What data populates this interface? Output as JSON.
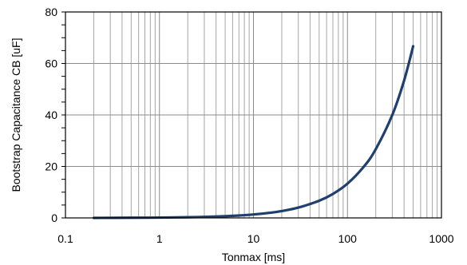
{
  "chart_data": {
    "type": "line",
    "title": "",
    "xlabel": "Tonmax [ms]",
    "ylabel": "Bootstrap Capacitance CB [uF]",
    "x_scale": "log",
    "xlim": [
      0.1,
      1000
    ],
    "ylim": [
      0,
      80
    ],
    "x_ticks": [
      {
        "value": 0.1,
        "label": "0.1"
      },
      {
        "value": 1,
        "label": "1"
      },
      {
        "value": 10,
        "label": "10"
      },
      {
        "value": 100,
        "label": "100"
      },
      {
        "value": 1000,
        "label": "1000"
      }
    ],
    "y_ticks": [
      {
        "value": 0,
        "label": "0"
      },
      {
        "value": 20,
        "label": "20"
      },
      {
        "value": 40,
        "label": "40"
      },
      {
        "value": 60,
        "label": "60"
      },
      {
        "value": 80,
        "label": "80"
      }
    ],
    "grid": true,
    "legend": "none",
    "series": [
      {
        "color": "#1f3f6e",
        "points": [
          [
            0.2,
            0.0
          ],
          [
            0.5,
            0.07
          ],
          [
            1,
            0.13
          ],
          [
            2,
            0.27
          ],
          [
            3,
            0.4
          ],
          [
            5,
            0.67
          ],
          [
            7,
            0.93
          ],
          [
            10,
            1.33
          ],
          [
            15,
            2.0
          ],
          [
            20,
            2.67
          ],
          [
            30,
            4.0
          ],
          [
            50,
            6.67
          ],
          [
            70,
            9.3
          ],
          [
            100,
            13.3
          ],
          [
            150,
            20.0
          ],
          [
            200,
            26.7
          ],
          [
            300,
            40.0
          ],
          [
            400,
            53.3
          ],
          [
            500,
            66.7
          ]
        ]
      }
    ]
  }
}
